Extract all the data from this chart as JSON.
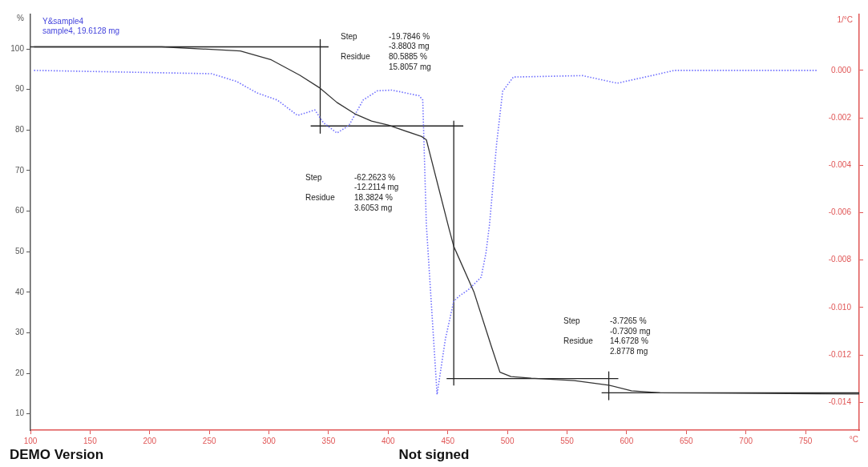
{
  "chart_data": {
    "type": "line",
    "title": "Y&sample4",
    "subtitle": "sample4, 19.6128 mg",
    "xlabel": "°C",
    "ylabel": "%",
    "y2label": "1/°C",
    "xlim": [
      100,
      795
    ],
    "xticks": [
      100,
      150,
      200,
      250,
      300,
      350,
      400,
      450,
      500,
      550,
      600,
      650,
      700,
      750
    ],
    "ylim": [
      6,
      108.5
    ],
    "yticks": [
      10,
      20,
      30,
      40,
      50,
      60,
      70,
      80,
      90,
      100
    ],
    "y2lim": [
      -0.01517,
      0.00236
    ],
    "y2ticks": [
      {
        "value": 0,
        "label": "0.000"
      },
      -0.002,
      -0.004,
      -0.006,
      -0.008,
      {
        "value": -0.01,
        "label": "-0.010"
      },
      -0.012,
      -0.014
    ],
    "grid": false,
    "legend": false,
    "marker": "none",
    "series": [
      {
        "color": "#333333",
        "line_style": "solid",
        "x": [
          100,
          210,
          276,
          302,
          326,
          343,
          357,
          372,
          386,
          400,
          428,
          432,
          451,
          455,
          472,
          486.6,
          493.7,
          503,
          520,
          556,
          585,
          604,
          628,
          689,
          795
        ],
        "values": [
          100.5,
          100.5,
          99.5,
          97.3,
          93.5,
          90.3,
          86.8,
          84,
          82.2,
          81.2,
          78.4,
          77.6,
          55.7,
          51.3,
          40,
          26.6,
          20.3,
          19.2,
          18.8,
          18.2,
          17.1,
          15.7,
          15.2,
          15.1,
          14.9
        ]
      },
      {
        "color": "#6f6fff",
        "axis": "y2",
        "line_style": "dotted",
        "x": [
          103,
          252,
          273,
          290,
          307,
          324,
          338.5,
          345.6,
          357,
          367,
          379,
          391,
          403,
          426,
          429,
          432,
          441,
          448,
          455,
          460,
          467,
          478,
          482,
          485,
          491,
          496,
          505,
          563,
          592,
          628,
          640,
          760
        ],
        "values": [
          0,
          -0.00014,
          -0.00047,
          -0.00095,
          -0.00125,
          -0.0019,
          -0.00167,
          -0.0022,
          -0.00264,
          -0.00233,
          -0.00125,
          -0.00086,
          -0.00083,
          -0.00107,
          -0.00125,
          -0.00649,
          -0.01367,
          -0.01132,
          -0.00973,
          -0.0095,
          -0.00926,
          -0.00872,
          -0.0077,
          -0.00649,
          -0.00306,
          -0.00088,
          -0.00028,
          -0.00022,
          -0.00054,
          -0.00014,
          0,
          0
        ]
      },
      {
        "type": "line",
        "color": "#222222",
        "x": [
          103,
          350
        ],
        "values": [
          100.5,
          100.5
        ]
      },
      {
        "type": "line",
        "color": "#222222",
        "x": [
          343,
          343
        ],
        "values": [
          102.3,
          79.2
        ]
      },
      {
        "type": "line",
        "color": "#222222",
        "x": [
          335,
          463
        ],
        "values": [
          81,
          81
        ]
      },
      {
        "type": "line",
        "color": "#222222",
        "x": [
          455,
          455
        ],
        "values": [
          82.2,
          17.1
        ]
      },
      {
        "type": "line",
        "color": "#222222",
        "x": [
          449,
          593
        ],
        "values": [
          18.7,
          18.7
        ]
      },
      {
        "type": "line",
        "color": "#222222",
        "x": [
          585,
          585
        ],
        "values": [
          20.4,
          13.5
        ]
      },
      {
        "type": "line",
        "color": "#222222",
        "x": [
          579,
          795
        ],
        "values": [
          15.2,
          15.2
        ]
      }
    ],
    "annotations": [
      "Step",
      "-19.7846 %",
      "-3.8803 mg",
      "Residue",
      "80.5885 %",
      "15.8057 mg",
      "Step",
      "-62.2623 %",
      "-12.2114 mg",
      "Residue",
      "18.3824 %",
      "3.6053 mg",
      "Step",
      "-3.7265 %",
      "-0.7309 mg",
      "Residue",
      "14.6728 %",
      "2.8778 mg",
      "DEMO Version",
      "Not signed"
    ]
  }
}
